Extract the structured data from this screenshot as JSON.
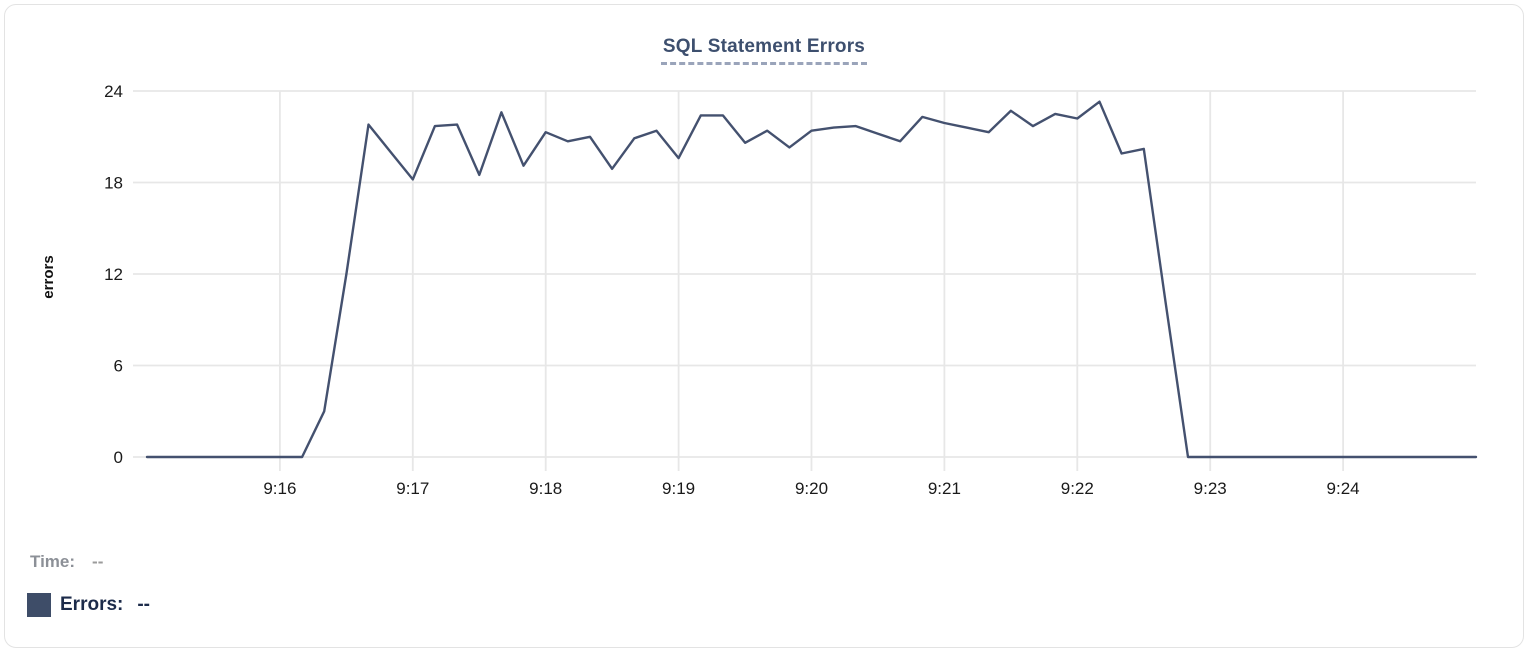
{
  "card": {
    "title": "SQL Statement Errors"
  },
  "legend": {
    "time_label": "Time:",
    "time_value": "--",
    "errors_label": "Errors:",
    "errors_value": "--",
    "swatch_color": "#3e4d68"
  },
  "colors": {
    "line": "#44516f",
    "title": "#3d4f6e",
    "title_underline": "#9aa4ba",
    "grid": "#e7e7e7",
    "tick_text": "#1a1a1a",
    "axis_label_text": "#111111",
    "time_text": "#8c9097",
    "errors_text": "#1c2b4a",
    "card_border": "#e3e3e3"
  },
  "chart_data": {
    "type": "line",
    "title": "SQL Statement Errors",
    "xlabel": "",
    "ylabel": "errors",
    "ylim": [
      0,
      24
    ],
    "y_ticks": [
      0,
      6,
      12,
      18,
      24
    ],
    "x_ticks": [
      "9:16",
      "9:17",
      "9:18",
      "9:19",
      "9:20",
      "9:21",
      "9:22",
      "9:23",
      "9:24"
    ],
    "x_range": [
      "9:15:00",
      "9:25:00"
    ],
    "sample_interval_seconds": 10,
    "grid": true,
    "legend_position": "bottom-left",
    "series": [
      {
        "name": "Errors",
        "start_time": "9:15:00",
        "values": [
          0,
          0,
          0,
          0,
          0,
          0,
          0,
          0,
          3,
          12,
          21.8,
          20,
          18.2,
          21.7,
          21.8,
          18.5,
          22.6,
          19.1,
          21.3,
          20.7,
          21,
          18.9,
          20.9,
          21.4,
          19.6,
          22.4,
          22.4,
          20.6,
          21.4,
          20.3,
          21.4,
          21.6,
          21.7,
          21.2,
          20.7,
          22.3,
          21.9,
          21.6,
          21.3,
          22.7,
          21.7,
          22.5,
          22.2,
          23.3,
          19.9,
          20.2,
          10,
          0,
          0,
          0,
          0,
          0,
          0,
          0,
          0,
          0,
          0,
          0,
          0,
          0,
          0
        ]
      }
    ]
  }
}
